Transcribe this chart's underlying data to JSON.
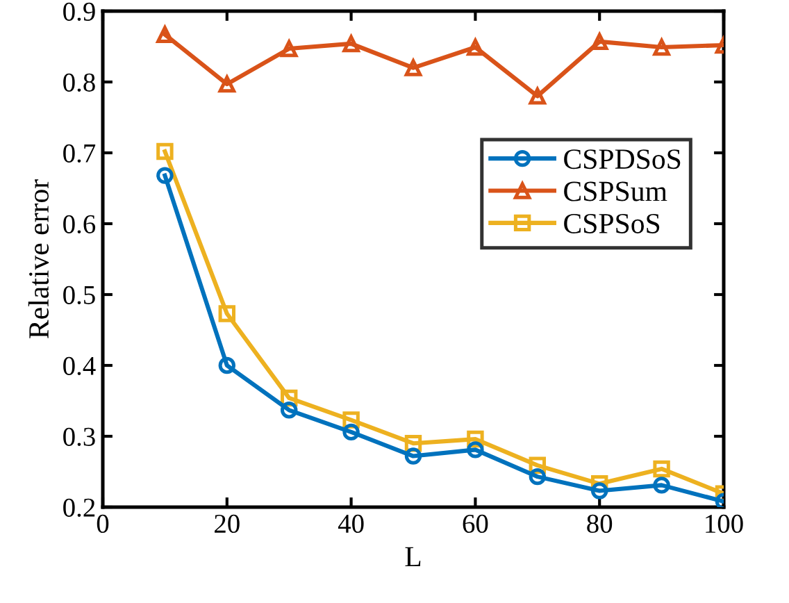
{
  "chart_data": {
    "type": "line",
    "xlabel": "L",
    "ylabel": "Relative error",
    "x": [
      10,
      20,
      30,
      40,
      50,
      60,
      70,
      80,
      90,
      100
    ],
    "series": [
      {
        "name": "CSPDSoS",
        "color": "#0072bd",
        "marker": "circle",
        "values": [
          0.668,
          0.4,
          0.337,
          0.306,
          0.272,
          0.281,
          0.243,
          0.223,
          0.231,
          0.208
        ]
      },
      {
        "name": "CSPSum",
        "color": "#d95319",
        "marker": "triangle",
        "values": [
          0.867,
          0.797,
          0.847,
          0.854,
          0.82,
          0.849,
          0.78,
          0.857,
          0.849,
          0.852
        ]
      },
      {
        "name": "CSPSoS",
        "color": "#edb120",
        "marker": "square",
        "values": [
          0.702,
          0.473,
          0.354,
          0.323,
          0.29,
          0.296,
          0.259,
          0.233,
          0.254,
          0.219
        ]
      }
    ],
    "xlim": [
      0,
      100
    ],
    "ylim": [
      0.2,
      0.9
    ],
    "xticks": [
      0,
      20,
      40,
      60,
      80,
      100
    ],
    "yticks": [
      0.2,
      0.3,
      0.4,
      0.5,
      0.6,
      0.7,
      0.8,
      0.9
    ],
    "grid": false,
    "legend": "top right",
    "line_style": "solid"
  }
}
